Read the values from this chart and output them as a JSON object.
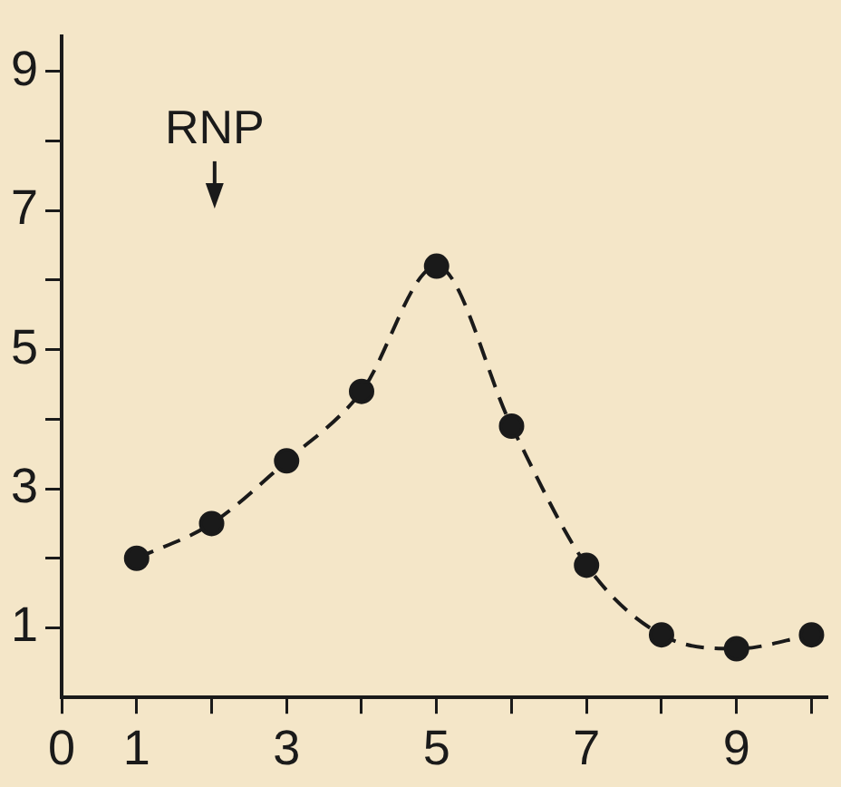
{
  "chart_data": {
    "type": "line",
    "x": [
      1,
      2,
      3,
      4,
      5,
      6,
      7,
      8,
      9,
      10
    ],
    "series": [
      {
        "color": "#1a1a1a",
        "values": [
          2.0,
          2.5,
          3.4,
          4.4,
          6.2,
          3.9,
          1.9,
          0.9,
          0.7,
          0.9
        ]
      }
    ],
    "xlim": [
      0,
      10.2
    ],
    "ylim": [
      0,
      9.5
    ],
    "xticks": [
      0,
      1,
      {
        "value": 2,
        "label": null
      },
      3,
      {
        "value": 4,
        "label": null
      },
      5,
      {
        "value": 6,
        "label": null
      },
      7,
      {
        "value": 8,
        "label": null
      },
      9,
      {
        "value": 10,
        "label": null
      }
    ],
    "yticks": [
      1,
      {
        "value": 2,
        "label": null
      },
      3,
      {
        "value": 4,
        "label": null
      },
      5,
      {
        "value": 6,
        "label": null
      },
      7,
      {
        "value": 8,
        "label": null
      },
      9
    ],
    "annotations": [
      "RNP"
    ],
    "marker": "circle",
    "line_style": "dashed",
    "grid": false,
    "legend": false
  }
}
